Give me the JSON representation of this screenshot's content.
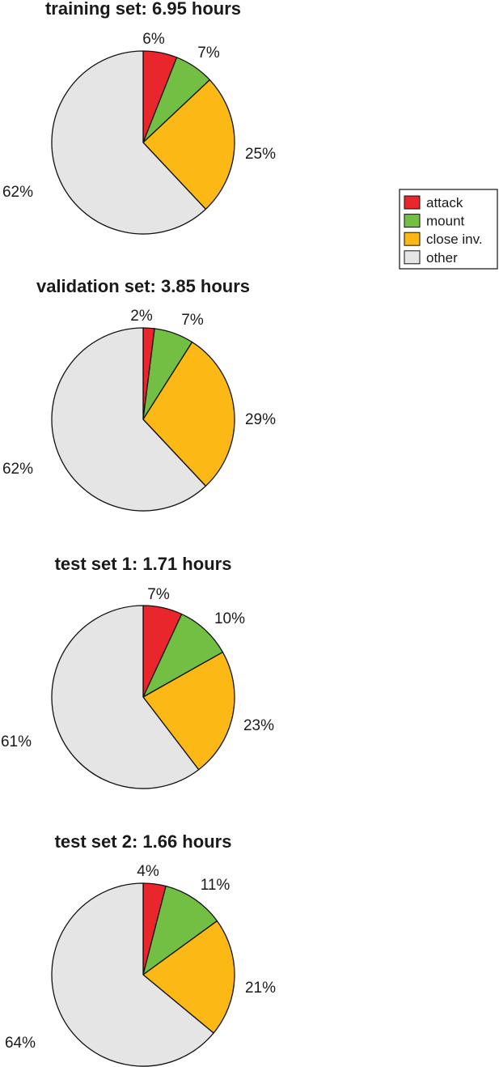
{
  "categories": [
    "attack",
    "mount",
    "close inv.",
    "other"
  ],
  "colors": {
    "attack": "#e8262b",
    "mount": "#72bf44",
    "close inv.": "#fcb814",
    "other": "#e5e5e6"
  },
  "legend": {
    "items": [
      {
        "label": "attack",
        "color": "#e8262b"
      },
      {
        "label": "mount",
        "color": "#72bf44"
      },
      {
        "label": "close inv.",
        "color": "#fcb814"
      },
      {
        "label": "other",
        "color": "#e5e5e6"
      }
    ]
  },
  "chart_data": [
    {
      "type": "pie",
      "title": "training set: 6.95 hours",
      "categories": [
        "attack",
        "mount",
        "close inv.",
        "other"
      ],
      "values": [
        6,
        7,
        25,
        62
      ],
      "labels": [
        "6%",
        "7%",
        "25%",
        "62%"
      ]
    },
    {
      "type": "pie",
      "title": "validation set: 3.85 hours",
      "categories": [
        "attack",
        "mount",
        "close inv.",
        "other"
      ],
      "values": [
        2,
        7,
        29,
        62
      ],
      "labels": [
        "2%",
        "7%",
        "29%",
        "62%"
      ]
    },
    {
      "type": "pie",
      "title": "test set 1: 1.71 hours",
      "categories": [
        "attack",
        "mount",
        "close inv.",
        "other"
      ],
      "values": [
        7,
        10,
        23,
        61
      ],
      "labels": [
        "7%",
        "10%",
        "23%",
        "61%"
      ]
    },
    {
      "type": "pie",
      "title": "test set 2: 1.66 hours",
      "categories": [
        "attack",
        "mount",
        "close inv.",
        "other"
      ],
      "values": [
        4,
        11,
        21,
        64
      ],
      "labels": [
        "4%",
        "11%",
        "21%",
        "64%"
      ]
    }
  ]
}
